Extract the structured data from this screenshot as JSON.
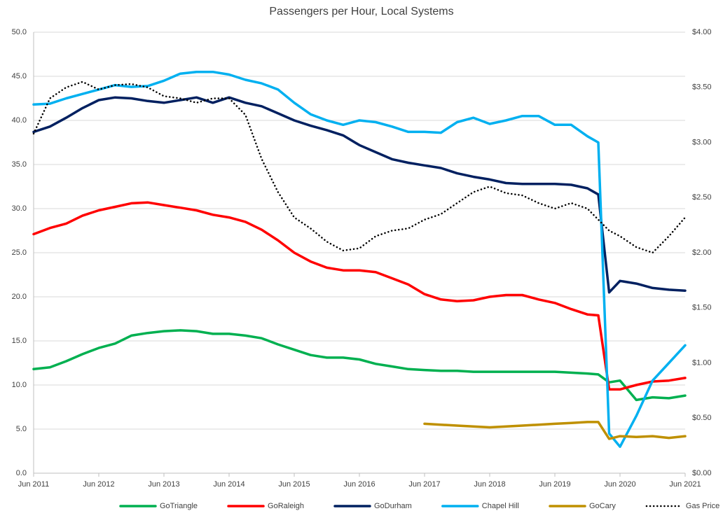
{
  "chart_data": {
    "type": "line",
    "title": "Passengers per Hour, Local Systems",
    "x": [
      "2011-06",
      "2011-09",
      "2011-12",
      "2012-03",
      "2012-06",
      "2012-09",
      "2012-12",
      "2013-03",
      "2013-06",
      "2013-09",
      "2013-12",
      "2014-03",
      "2014-06",
      "2014-09",
      "2014-12",
      "2015-03",
      "2015-06",
      "2015-09",
      "2015-12",
      "2016-03",
      "2016-06",
      "2016-09",
      "2016-12",
      "2017-03",
      "2017-06",
      "2017-09",
      "2017-12",
      "2018-03",
      "2018-06",
      "2018-09",
      "2018-12",
      "2019-03",
      "2019-06",
      "2019-09",
      "2019-12",
      "2020-02",
      "2020-04",
      "2020-06",
      "2020-09",
      "2020-12",
      "2021-03",
      "2021-06"
    ],
    "xlim": [
      "2011-06",
      "2021-06"
    ],
    "xticks": [
      {
        "value": "2011-06",
        "label": "Jun 2011"
      },
      {
        "value": "2012-06",
        "label": "Jun 2012"
      },
      {
        "value": "2013-06",
        "label": "Jun 2013"
      },
      {
        "value": "2014-06",
        "label": "Jun 2014"
      },
      {
        "value": "2015-06",
        "label": "Jun 2015"
      },
      {
        "value": "2016-06",
        "label": "Jun 2016"
      },
      {
        "value": "2017-06",
        "label": "Jun 2017"
      },
      {
        "value": "2018-06",
        "label": "Jun 2018"
      },
      {
        "value": "2019-06",
        "label": "Jun 2019"
      },
      {
        "value": "2020-06",
        "label": "Jun 2020"
      },
      {
        "value": "2021-06",
        "label": "Jun 2021"
      }
    ],
    "ylim": [
      0,
      50
    ],
    "yticks": [
      {
        "value": 0,
        "label": "0.0"
      },
      {
        "value": 5,
        "label": "5.0"
      },
      {
        "value": 10,
        "label": "10.0"
      },
      {
        "value": 15,
        "label": "15.0"
      },
      {
        "value": 20,
        "label": "20.0"
      },
      {
        "value": 25,
        "label": "25.0"
      },
      {
        "value": 30,
        "label": "30.0"
      },
      {
        "value": 35,
        "label": "35.0"
      },
      {
        "value": 40,
        "label": "40.0"
      },
      {
        "value": 45,
        "label": "45.0"
      },
      {
        "value": 50,
        "label": "50.0"
      }
    ],
    "y2lim": [
      0,
      4
    ],
    "y2ticks": [
      {
        "value": 0,
        "label": "$0.00"
      },
      {
        "value": 0.5,
        "label": "$0.50"
      },
      {
        "value": 1,
        "label": "$1.00"
      },
      {
        "value": 1.5,
        "label": "$1.50"
      },
      {
        "value": 2,
        "label": "$2.00"
      },
      {
        "value": 2.5,
        "label": "$2.50"
      },
      {
        "value": 3,
        "label": "$3.00"
      },
      {
        "value": 3.5,
        "label": "$3.50"
      },
      {
        "value": 4,
        "label": "$4.00"
      }
    ],
    "grid": true,
    "legend": "bottom",
    "series": [
      {
        "name": "GoTriangle",
        "color": "#00b050",
        "values": [
          11.8,
          12.0,
          12.7,
          13.5,
          14.2,
          14.7,
          15.6,
          15.9,
          16.1,
          16.2,
          16.1,
          15.8,
          15.8,
          15.6,
          15.3,
          14.6,
          14.0,
          13.4,
          13.1,
          13.1,
          12.9,
          12.4,
          12.1,
          11.8,
          11.7,
          11.6,
          11.6,
          11.5,
          11.5,
          11.5,
          11.5,
          11.5,
          11.5,
          11.4,
          11.3,
          11.2,
          10.3,
          10.5,
          8.3,
          8.6,
          8.5,
          8.8
        ]
      },
      {
        "name": "GoRaleigh",
        "color": "#ff0000",
        "values": [
          27.1,
          27.8,
          28.3,
          29.2,
          29.8,
          30.2,
          30.6,
          30.7,
          30.4,
          30.1,
          29.8,
          29.3,
          29.0,
          28.5,
          27.6,
          26.4,
          25.0,
          24.0,
          23.3,
          23.0,
          23.0,
          22.8,
          22.1,
          21.4,
          20.3,
          19.7,
          19.5,
          19.6,
          20.0,
          20.2,
          20.2,
          19.7,
          19.3,
          18.6,
          18.0,
          17.9,
          9.5,
          9.5,
          10.0,
          10.4,
          10.5,
          10.8
        ]
      },
      {
        "name": "GoDurham",
        "color": "#002060",
        "values": [
          38.7,
          39.3,
          40.3,
          41.4,
          42.3,
          42.6,
          42.5,
          42.2,
          42.0,
          42.3,
          42.6,
          42.0,
          42.6,
          42.0,
          41.6,
          40.8,
          40.0,
          39.4,
          38.9,
          38.3,
          37.2,
          36.4,
          35.6,
          35.2,
          34.9,
          34.6,
          34.0,
          33.6,
          33.3,
          32.9,
          32.8,
          32.8,
          32.8,
          32.7,
          32.3,
          31.6,
          20.5,
          21.8,
          21.5,
          21.0,
          20.8,
          20.7
        ]
      },
      {
        "name": "Chapel Hill",
        "color": "#00b0f0",
        "values": [
          41.8,
          41.9,
          42.5,
          43.0,
          43.5,
          44.0,
          43.8,
          43.9,
          44.5,
          45.3,
          45.5,
          45.5,
          45.2,
          44.6,
          44.2,
          43.5,
          42.0,
          40.7,
          40.0,
          39.5,
          40.0,
          39.8,
          39.3,
          38.7,
          38.7,
          38.6,
          39.8,
          40.3,
          39.6,
          40.0,
          40.5,
          40.5,
          39.5,
          39.5,
          38.2,
          37.5,
          4.5,
          3.0,
          6.5,
          10.5,
          12.5,
          14.5
        ]
      },
      {
        "name": "GoCary",
        "color": "#bf9000",
        "values": [
          null,
          null,
          null,
          null,
          null,
          null,
          null,
          null,
          null,
          null,
          null,
          null,
          null,
          null,
          null,
          null,
          null,
          null,
          null,
          null,
          null,
          null,
          null,
          null,
          5.6,
          5.5,
          5.4,
          5.3,
          5.2,
          5.3,
          5.4,
          5.5,
          5.6,
          5.7,
          5.8,
          5.8,
          3.9,
          4.2,
          4.1,
          4.2,
          4.0,
          4.2
        ]
      },
      {
        "name": "Gas Price",
        "color": "#000000",
        "style": "dotted",
        "axis": "y2",
        "values": [
          3.08,
          3.4,
          3.5,
          3.55,
          3.48,
          3.52,
          3.53,
          3.5,
          3.42,
          3.4,
          3.36,
          3.4,
          3.4,
          3.25,
          2.85,
          2.55,
          2.32,
          2.22,
          2.1,
          2.02,
          2.04,
          2.15,
          2.2,
          2.22,
          2.3,
          2.35,
          2.45,
          2.55,
          2.6,
          2.54,
          2.52,
          2.45,
          2.4,
          2.45,
          2.4,
          2.3,
          2.2,
          2.15,
          2.05,
          2.0,
          2.15,
          2.32
        ]
      }
    ]
  }
}
